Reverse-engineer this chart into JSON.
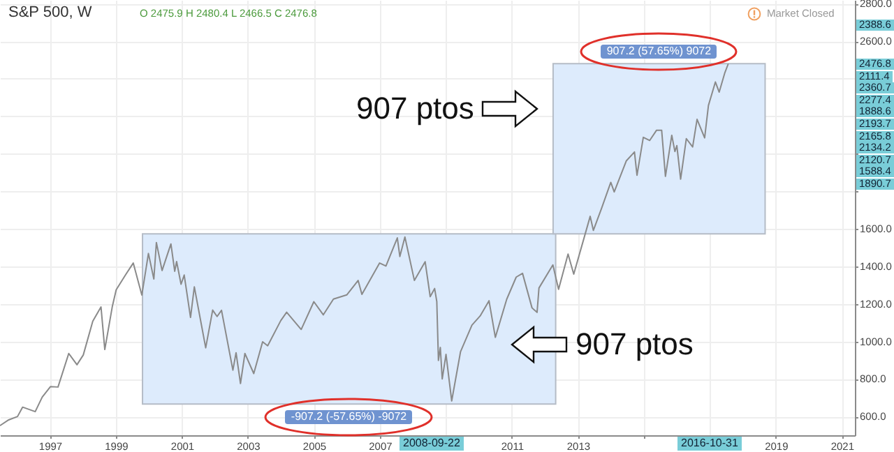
{
  "chart_data": {
    "type": "line",
    "title": "S&P 500, W",
    "subtitle": "O 2475.9 H 2480.4 L 2466.5 C 2476.8",
    "x": [
      "1995-07-03",
      "1995-10-02",
      "1996-01-08",
      "1996-03-04",
      "1996-07-22",
      "1996-10-07",
      "1997-01-06",
      "1997-03-31",
      "1997-07-28",
      "1997-10-27",
      "1998-01-05",
      "1998-04-20",
      "1998-07-20",
      "1998-08-31",
      "1998-11-23",
      "1999-01-04",
      "1999-04-19",
      "1999-07-12",
      "1999-10-15",
      "1999-12-27",
      "2000-02-25",
      "2000-03-24",
      "2000-05-26",
      "2000-09-01",
      "2000-10-13",
      "2000-11-03",
      "2000-12-22",
      "2001-01-26",
      "2001-04-06",
      "2001-05-18",
      "2001-09-21",
      "2001-12-07",
      "2002-01-25",
      "2002-03-15",
      "2002-07-19",
      "2002-08-23",
      "2002-10-11",
      "2002-11-29",
      "2003-03-07",
      "2003-06-13",
      "2003-08-08",
      "2003-12-31",
      "2004-03-05",
      "2004-08-13",
      "2004-12-31",
      "2005-04-15",
      "2005-08-05",
      "2005-12-30",
      "2006-05-05",
      "2006-06-16",
      "2006-12-29",
      "2007-03-09",
      "2007-07-13",
      "2007-08-10",
      "2007-10-05",
      "2008-01-18",
      "2008-05-16",
      "2008-07-11",
      "2008-08-29",
      "2008-09-22",
      "2008-10-10",
      "2008-10-31",
      "2008-11-21",
      "2009-01-02",
      "2009-03-06",
      "2009-06-12",
      "2009-10-16",
      "2010-01-15",
      "2010-04-23",
      "2010-07-02",
      "2010-11-05",
      "2011-02-18",
      "2011-04-29",
      "2011-08-12",
      "2011-10-07",
      "2011-10-28",
      "2012-03-30",
      "2012-06-01",
      "2012-09-14",
      "2012-11-16",
      "2013-03-15",
      "2013-05-17",
      "2013-06-21",
      "2013-09-20",
      "2013-12-31",
      "2014-02-07",
      "2014-06-20",
      "2014-09-19",
      "2014-10-17",
      "2014-12-26",
      "2015-03-06",
      "2015-05-22",
      "2015-07-17",
      "2015-08-28",
      "2015-11-06",
      "2015-12-11",
      "2016-01-01",
      "2016-02-12",
      "2016-04-15",
      "2016-06-24",
      "2016-08-12",
      "2016-11-04",
      "2016-12-16",
      "2017-03-03",
      "2017-04-14",
      "2017-06-16",
      "2017-07-21"
    ],
    "series": [
      {
        "color": "#8a8a8a",
        "values": [
          553,
          582,
          600,
          650,
          626,
          703,
          759,
          757,
          936,
          876,
          928,
          1108,
          1184,
          957,
          1188,
          1275,
          1356,
          1418,
          1247,
          1469,
          1333,
          1527,
          1378,
          1520,
          1374,
          1426,
          1305,
          1354,
          1128,
          1291,
          966,
          1167,
          1133,
          1166,
          847,
          940,
          776,
          936,
          829,
          998,
          977,
          1111,
          1156,
          1064,
          1212,
          1142,
          1226,
          1248,
          1325,
          1251,
          1418,
          1402,
          1552,
          1453,
          1557,
          1325,
          1425,
          1239,
          1282,
          1213,
          899,
          968,
          800,
          931,
          683,
          946,
          1087,
          1136,
          1217,
          1022,
          1225,
          1343,
          1363,
          1179,
          1155,
          1285,
          1408,
          1278,
          1466,
          1359,
          1560,
          1667,
          1592,
          1710,
          1848,
          1797,
          1962,
          2010,
          1886,
          2088,
          2071,
          2126,
          2126,
          1880,
          2099,
          2012,
          2044,
          1865,
          2081,
          2037,
          2184,
          2085,
          2258,
          2383,
          2329,
          2433,
          2477
        ]
      }
    ],
    "xlim": [
      "1995-06-28",
      "2021-05-25"
    ],
    "xticks": [
      "1997",
      "1999",
      "2001",
      "2003",
      "2005",
      "2007",
      {
        "value": "2009",
        "label": null
      },
      "2011",
      "2013",
      {
        "value": "2015",
        "label": null
      },
      {
        "value": "2017",
        "label": null
      },
      "2019",
      "2021"
    ],
    "ylim": [
      500,
      2820
    ],
    "yticks": [
      {
        "value": 600,
        "label": "600.0"
      },
      {
        "value": 800,
        "label": "800.0"
      },
      {
        "value": 1000,
        "label": "1000.0"
      },
      {
        "value": 1200,
        "label": "1200.0"
      },
      {
        "value": 1400,
        "label": "1400.0"
      },
      {
        "value": 1600,
        "label": "1600.0"
      },
      {
        "value": 1800,
        "label": null
      },
      {
        "value": 2000,
        "label": null
      },
      {
        "value": 2200,
        "label": null
      },
      {
        "value": 2400,
        "label": null
      },
      {
        "value": 2600,
        "label": "2600.0"
      },
      {
        "value": 2800,
        "label": "2800.0"
      }
    ],
    "grid": true,
    "bands": [
      {
        "axis": "y",
        "from": 666.4,
        "to": 1573.6,
        "label": "-907.2 (-57.65%) -9072",
        "color": "#ddebfc"
      },
      {
        "axis": "y",
        "from": 1573.6,
        "to": 2480.8,
        "label": "907.2 (57.65%) 9072",
        "color": "#ddebfc"
      }
    ],
    "annotations": [
      "Market Closed",
      "907 ptos",
      "907 ptos",
      "2008-09-22",
      "2016-10-31",
      "2388.6",
      "2476.8",
      "2111.4",
      "2360.7",
      "2277.4",
      "1888.6",
      "2193.7",
      "2165.8",
      "2134.2",
      "2120.7",
      "1588.4",
      "1890.7"
    ]
  }
}
